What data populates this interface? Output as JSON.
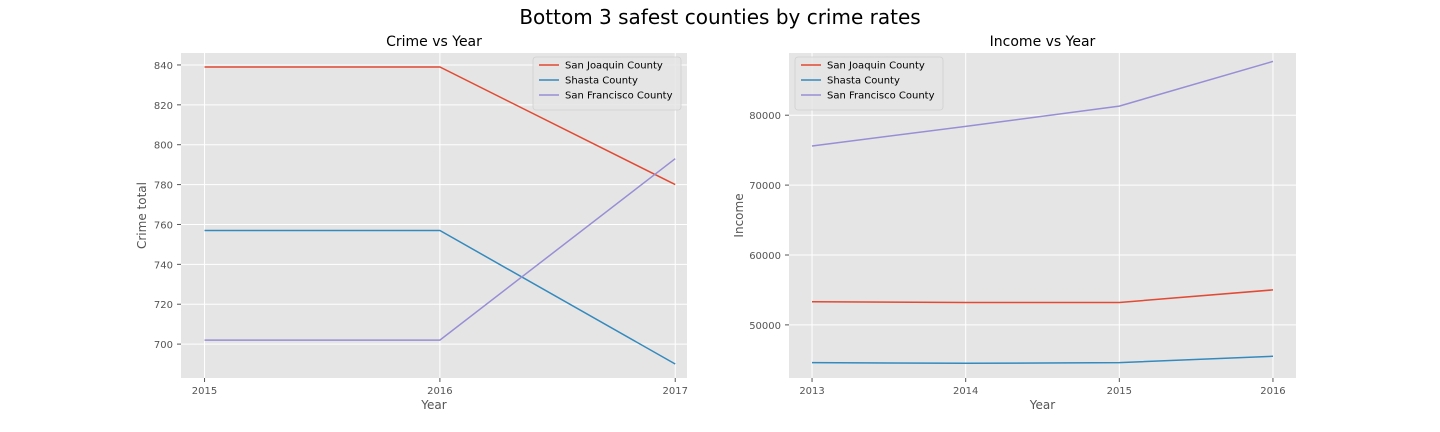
{
  "figure": {
    "title": "Bottom 3 safest counties by crime rates"
  },
  "colors": {
    "plot_background": "#e5e5e5",
    "grid": "#ffffff",
    "tick_text": "#555555",
    "label_text": "#555555",
    "series": [
      "#e24a33",
      "#348abd",
      "#988ed5"
    ]
  },
  "chart_data": [
    {
      "type": "line",
      "title": "Crime vs Year",
      "xlabel": "Year",
      "ylabel": "Crime total",
      "x": [
        2015,
        2016,
        2017
      ],
      "x_ticks": [
        "2015",
        "2016",
        "2017"
      ],
      "xlim": [
        2014.9,
        2017.05
      ],
      "ylim": [
        683,
        846
      ],
      "y_ticks": [
        700,
        720,
        740,
        760,
        780,
        800,
        820,
        840
      ],
      "grid": true,
      "legend_position": "upper right",
      "series": [
        {
          "name": "San Joaquin County",
          "values": [
            839,
            839,
            780
          ]
        },
        {
          "name": "Shasta County",
          "values": [
            757,
            757,
            690
          ]
        },
        {
          "name": "San Francisco County",
          "values": [
            702,
            702,
            793
          ]
        }
      ]
    },
    {
      "type": "line",
      "title": "Income vs Year",
      "xlabel": "Year",
      "ylabel": "Income",
      "x": [
        2013,
        2014,
        2015,
        2016
      ],
      "x_ticks": [
        "2013",
        "2014",
        "2015",
        "2016"
      ],
      "xlim": [
        2012.85,
        2016.15
      ],
      "ylim": [
        42400,
        88900
      ],
      "y_ticks": [
        50000,
        60000,
        70000,
        80000
      ],
      "grid": true,
      "legend_position": "upper left",
      "series": [
        {
          "name": "San Joaquin County",
          "values": [
            53300,
            53200,
            53200,
            55000
          ]
        },
        {
          "name": "Shasta County",
          "values": [
            44600,
            44500,
            44600,
            45500
          ]
        },
        {
          "name": "San Francisco County",
          "values": [
            75600,
            78400,
            81300,
            87700
          ]
        }
      ]
    }
  ]
}
